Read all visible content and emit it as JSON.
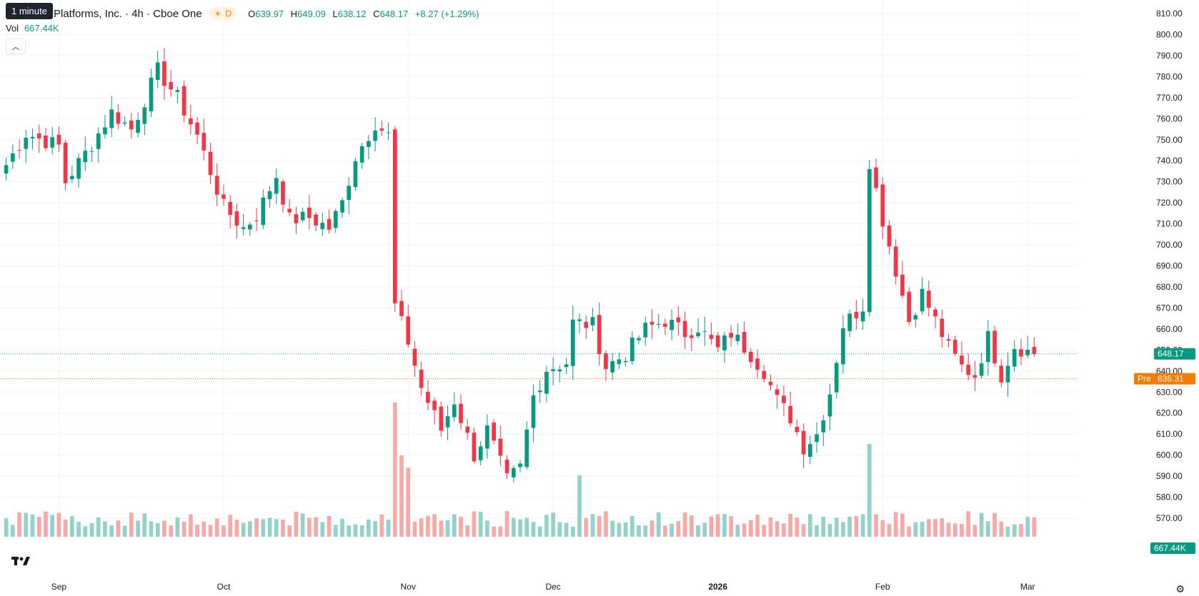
{
  "legend": {
    "tooltip": "1 minute",
    "symbol_text": "Platforms, Inc. · 4h · Cboe One",
    "interval_badge": "D",
    "o_key": "O",
    "o_val": "639.97",
    "h_key": "H",
    "h_val": "649.09",
    "l_key": "L",
    "l_val": "638.12",
    "c_key": "C",
    "c_val": "648.17",
    "change": "+8.27 (+1.29%)",
    "vol_label": "Vol",
    "vol_val": "667.44K"
  },
  "price_labels": {
    "last": "648.17",
    "pre_tag": "Pre",
    "pre": "636.31",
    "volume": "667.44K"
  },
  "colors": {
    "up": "#089981",
    "down": "#f23645",
    "up_volume": "#92d2c9",
    "down_volume": "#f7a9a7",
    "pre": "#f57c00",
    "grid": "#f0f3fa"
  },
  "chart_data": {
    "type": "candlestick",
    "y_axis_ticks": [
      570,
      580,
      590,
      600,
      610,
      620,
      630,
      640,
      650,
      660,
      670,
      680,
      690,
      700,
      710,
      720,
      730,
      740,
      750,
      760,
      770,
      780,
      790,
      800,
      810
    ],
    "y_range": [
      567,
      816
    ],
    "x_axis_labels": [
      "Sep",
      "Oct",
      "Nov",
      "Dec",
      "2026",
      "Feb",
      "Mar"
    ],
    "x_axis_label_positions_bar_index": [
      8,
      33,
      61,
      83,
      108,
      133,
      155
    ],
    "last_price": 648.17,
    "pre_market_price": 636.31,
    "candle_count": 157,
    "anchor_closes": [
      [
        0,
        738
      ],
      [
        3,
        753
      ],
      [
        8,
        747
      ],
      [
        9,
        730
      ],
      [
        13,
        748
      ],
      [
        16,
        763
      ],
      [
        19,
        755
      ],
      [
        23,
        783
      ],
      [
        26,
        770
      ],
      [
        29,
        752
      ],
      [
        33,
        718
      ],
      [
        36,
        708
      ],
      [
        38,
        714
      ],
      [
        41,
        733
      ],
      [
        43,
        712
      ],
      [
        46,
        713
      ],
      [
        49,
        708
      ],
      [
        51,
        720
      ],
      [
        53,
        742
      ],
      [
        56,
        758
      ],
      [
        58,
        752
      ],
      [
        59,
        671
      ],
      [
        61,
        654
      ],
      [
        63,
        632
      ],
      [
        66,
        612
      ],
      [
        68,
        626
      ],
      [
        71,
        600
      ],
      [
        73,
        612
      ],
      [
        76,
        588
      ],
      [
        78,
        594
      ],
      [
        80,
        628
      ],
      [
        82,
        641
      ],
      [
        85,
        644
      ],
      [
        86,
        663
      ],
      [
        89,
        662
      ],
      [
        91,
        642
      ],
      [
        94,
        648
      ],
      [
        97,
        660
      ],
      [
        100,
        664
      ],
      [
        103,
        658
      ],
      [
        105,
        661
      ],
      [
        108,
        650
      ],
      [
        110,
        658
      ],
      [
        113,
        648
      ],
      [
        115,
        640
      ],
      [
        117,
        626
      ],
      [
        119,
        618
      ],
      [
        121,
        604
      ],
      [
        123,
        610
      ],
      [
        125,
        630
      ],
      [
        127,
        662
      ],
      [
        130,
        671
      ],
      [
        131,
        740
      ],
      [
        133,
        712
      ],
      [
        135,
        688
      ],
      [
        137,
        664
      ],
      [
        139,
        677
      ],
      [
        141,
        664
      ],
      [
        143,
        651
      ],
      [
        145,
        642
      ],
      [
        147,
        638
      ],
      [
        149,
        656
      ],
      [
        151,
        638
      ],
      [
        153,
        652
      ],
      [
        156,
        648
      ]
    ],
    "volume_spikes_bar_index": [
      59,
      60,
      61,
      87,
      131
    ]
  }
}
